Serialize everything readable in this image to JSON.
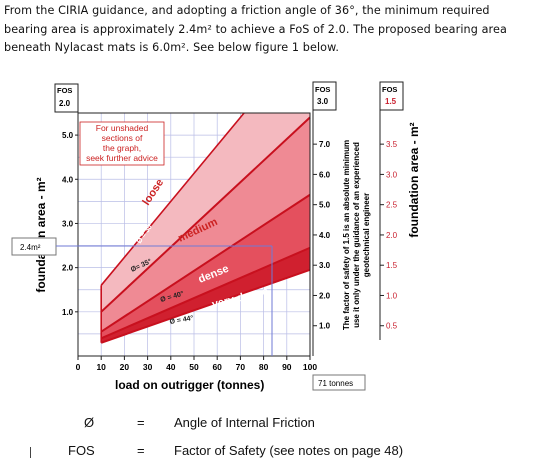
{
  "intro": {
    "lines": [
      "From the CIRIA guidance, and adopting a friction angle of 36°, the minimum required",
      "bearing area is approximately 2.4m² to achieve a FoS of 2.0. The proposed bearing area",
      "beneath Nylacast mats is 6.0m². See below figure 1 below."
    ]
  },
  "figure": {
    "y_left_title": "foundation area - m²",
    "y_right_title": "foundation area - m²",
    "x_title": "load on outrigger (tonnes)",
    "x_ticks": [
      "0",
      "10",
      "20",
      "30",
      "40",
      "50",
      "60",
      "70",
      "80",
      "90",
      "100"
    ],
    "fos_left_header": "FOS",
    "fos_left_value": "2.0",
    "left_ticks": [
      "5.0",
      "4.0",
      "3.0",
      "2.0",
      "1.0"
    ],
    "fos_mid_header": "FOS",
    "fos_mid_value": "3.0",
    "mid_ticks": [
      "7.0",
      "6.0",
      "5.0",
      "4.0",
      "3.0",
      "2.0",
      "1.0"
    ],
    "fos_right_header": "FOS",
    "fos_right_value": "1.5",
    "right_ticks": [
      "3.5",
      "3.0",
      "2.5",
      "2.0",
      "1.5",
      "1.0",
      "0.5"
    ],
    "note_lines": [
      "For unshaded",
      "sections of",
      "the graph,",
      "seek further advice"
    ],
    "vertical_note_lines": [
      "The factor of safety of 1.5 is an absolute minimum",
      "use it only under the guidance of an experienced",
      "geotechnical engineer"
    ],
    "zones": {
      "loose": "loose",
      "medium": "medium",
      "dense": "dense",
      "very_dense": "very dense"
    },
    "angles": {
      "a30": "Ø = 30°",
      "a35": "Ø= 35°",
      "a40": "Ø = 40°",
      "a44": "Ø = 44°"
    },
    "callout_area": "2.4m²",
    "callout_load": "71 tonnes",
    "colors": {
      "loose": "#f4b9bf",
      "medium": "#ef8a94",
      "dense": "#e4505e",
      "very_dense": "#d0202f",
      "curve": "#c8101e",
      "grid": "#b9bde6",
      "note_text": "#cc2222"
    }
  },
  "chart_data": {
    "type": "area",
    "title": "",
    "xlabel": "load on outrigger (tonnes)",
    "ylabel": "foundation area - m²",
    "xlim": [
      0,
      100
    ],
    "ylim": [
      0,
      5.5
    ],
    "series": [
      {
        "name": "Ø = 30°",
        "x": [
          10,
          100
        ],
        "y": [
          1.0,
          5.4
        ]
      },
      {
        "name": "Ø= 35°",
        "x": [
          10,
          100
        ],
        "y": [
          0.55,
          3.65
        ]
      },
      {
        "name": "Ø = 40°",
        "x": [
          10,
          100
        ],
        "y": [
          0.4,
          2.45
        ]
      },
      {
        "name": "Ø = 44°",
        "x": [
          10,
          100
        ],
        "y": [
          0.3,
          1.95
        ]
      }
    ],
    "annotations": [
      {
        "text": "2.4m²",
        "y": 2.4
      },
      {
        "text": "71 tonnes",
        "x": 71
      }
    ]
  },
  "legend": {
    "rows": [
      {
        "symbol": "Ø",
        "eq": "=",
        "definition": "Angle of Internal Friction"
      },
      {
        "symbol": "FOS",
        "eq": "=",
        "definition": "Factor of Safety (see notes on page 48)"
      }
    ]
  }
}
